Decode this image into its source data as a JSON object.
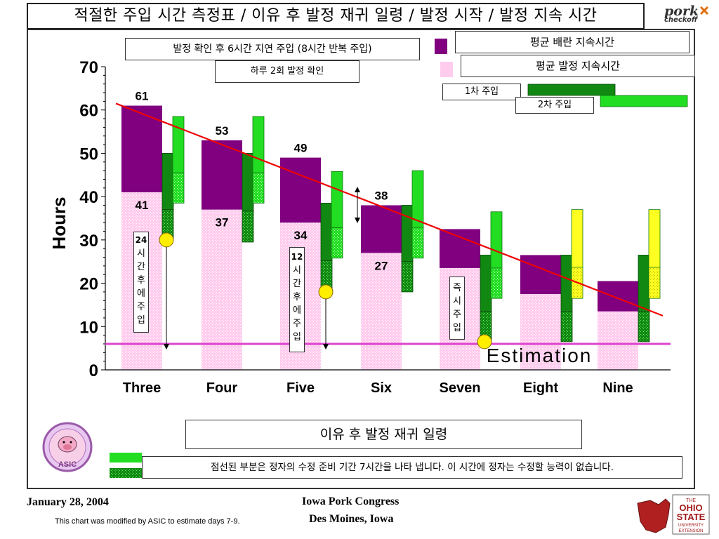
{
  "title": "적절한 주입 시간 측정표 / 이유 후 발정 재귀 일령 / 발정 시작 / 발정 지속 시간",
  "logos": {
    "pork_checkoff": {
      "word": "pork",
      "sub": "checkoff"
    },
    "asic": {
      "text": "ASIC"
    },
    "ohio_state": {
      "lines": [
        "THE",
        "OHIO",
        "STATE",
        "UNIVERSITY",
        "EXTENSION"
      ]
    }
  },
  "boxes": {
    "protocol": "발정 확인 후 6시간 지연 주입 (8시간 반복 주입)",
    "check": "하루 2회 발정 확인",
    "legend_ovulation": "평균 배란 지속시간",
    "legend_estrus": "평균 발정 지속시간",
    "first_insem": "1차 주입",
    "second_insem": "2차 주입",
    "subtitle": "이유 후 발정 재귀 일령",
    "note": "점선된 부분은 정자의 수정 준비 기간 7시간을 나타 냅니다. 이 시간에 정자는 수정할 능력이 없습니다."
  },
  "callouts": {
    "three": [
      "24",
      "시",
      "간",
      "후",
      "에",
      "주",
      "입"
    ],
    "five": [
      "12",
      "시",
      "간",
      "후",
      "에",
      "주",
      "입"
    ],
    "seven": [
      "즉",
      "시",
      "주",
      "입"
    ]
  },
  "footer": {
    "date": "January 28, 2004",
    "modified_note": "This chart was modified by ASIC to estimate days 7-9.",
    "event": "Iowa Pork Congress",
    "location": "Des Moines, Iowa"
  },
  "chart_data": {
    "type": "bar",
    "ylabel": "Hours",
    "ylim": [
      0,
      70
    ],
    "yticks": [
      0,
      10,
      20,
      30,
      40,
      50,
      60,
      70
    ],
    "categories": [
      "Three",
      "Four",
      "Five",
      "Six",
      "Seven",
      "Eight",
      "Nine"
    ],
    "estrus_top": [
      61,
      53,
      49,
      38,
      32.5,
      26.5,
      20.5
    ],
    "ovulation_start": [
      41,
      37,
      34,
      27,
      23.5,
      17.5,
      13.5
    ],
    "top_labels": [
      "61",
      "53",
      "49",
      "38",
      "",
      "",
      ""
    ],
    "bottom_labels": [
      "41",
      "37",
      "34",
      "27",
      "",
      "",
      ""
    ],
    "first_insemination": [
      [
        30,
        50
      ],
      [
        29.5,
        50
      ],
      [
        18,
        38.5
      ],
      [
        18,
        38
      ],
      [
        6.5,
        26.5
      ],
      [
        6.5,
        26.5
      ],
      [
        6.5,
        26.5
      ]
    ],
    "second_insemination": [
      [
        38.5,
        58.5
      ],
      [
        38.5,
        58.5
      ],
      [
        25.8,
        45.8
      ],
      [
        25.8,
        46
      ],
      [
        16.5,
        36.5
      ],
      [
        16.5,
        37
      ],
      [
        16.5,
        37
      ]
    ],
    "second_insemination_estimated": [
      false,
      false,
      false,
      false,
      false,
      true,
      true
    ],
    "estimation_line": {
      "y": 6,
      "label": "Estimation"
    },
    "trend_line": {
      "from": [
        61.5
      ],
      "to": [
        12.5
      ]
    },
    "insemination_markers": [
      {
        "category": "Three",
        "y": 30
      },
      {
        "category": "Five",
        "y": 18
      },
      {
        "category": "Seven",
        "y": 6.5
      }
    ],
    "colors": {
      "estrus_duration": "#800080",
      "ovulation_duration": "#ffccee",
      "first_insem": "#118811",
      "second_insem": "#22dd22",
      "estimated_insem": "#ffff22",
      "trend_line": "#ee0000",
      "estimation_line": "#dd44cc",
      "marker": "#ffee00"
    }
  }
}
